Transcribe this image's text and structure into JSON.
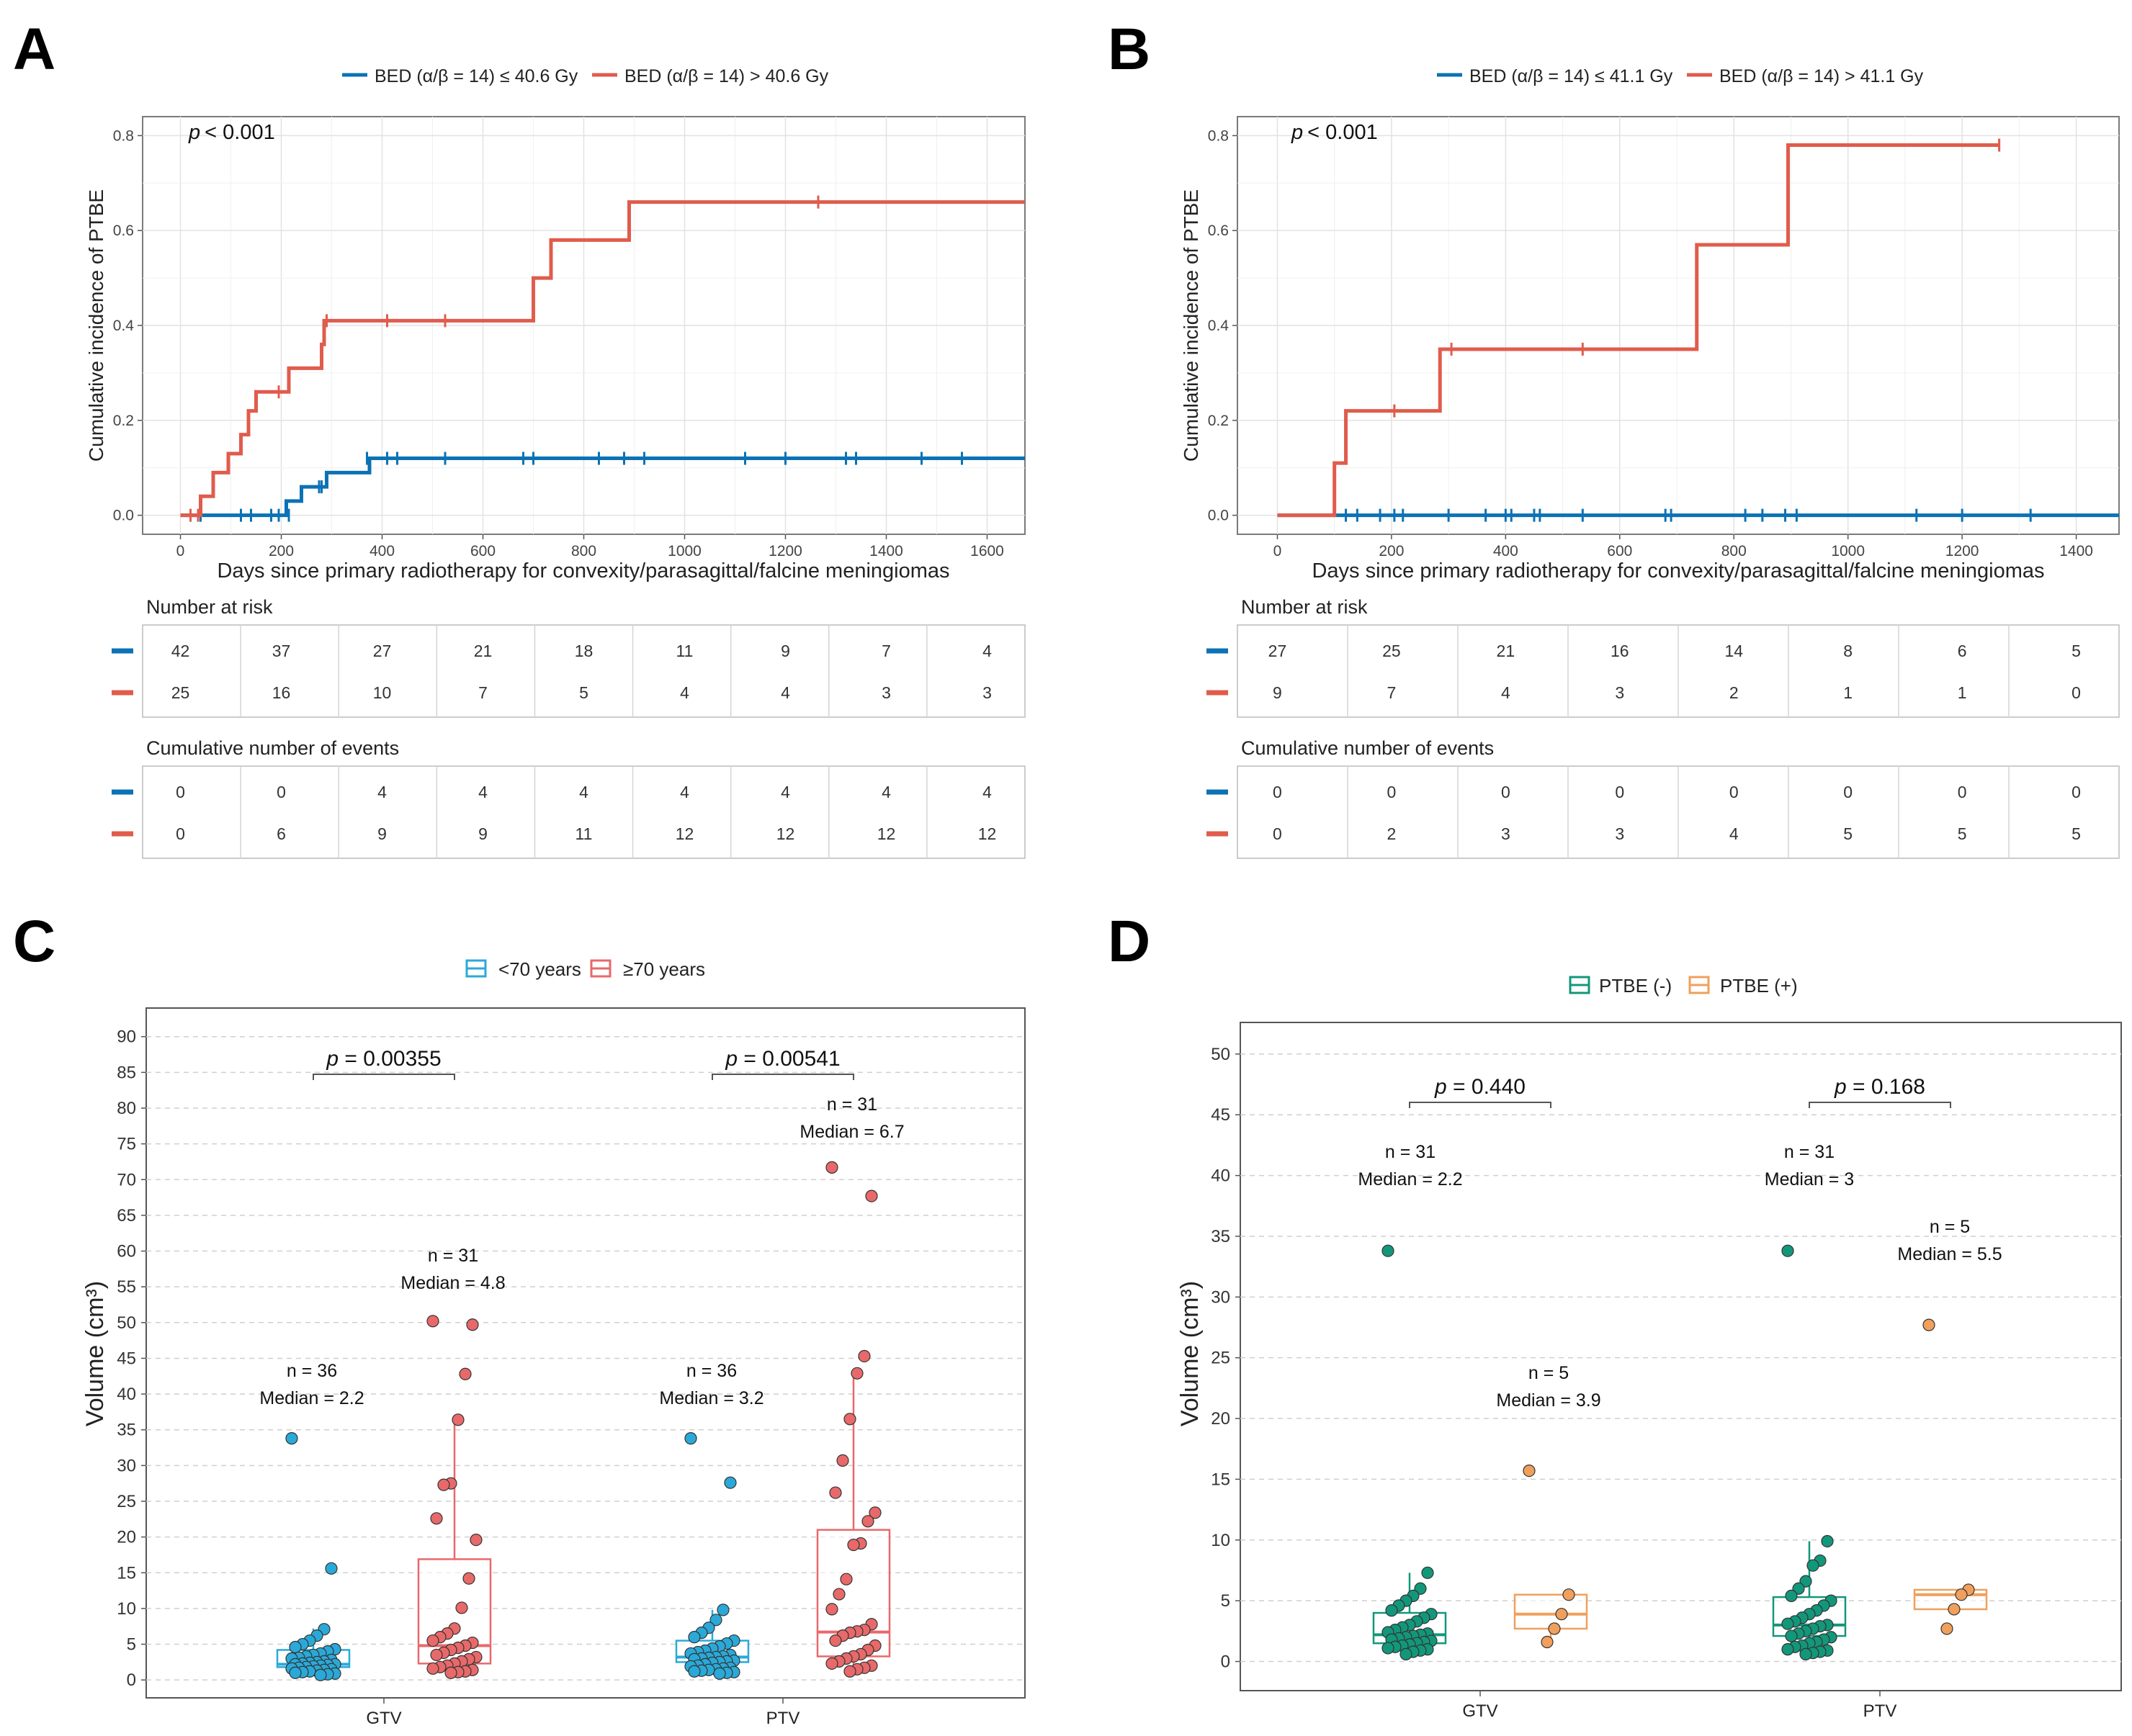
{
  "chart_data": [
    {
      "panel": "A",
      "type": "line",
      "legend": [
        "BED (α/β = 14) ≤ 40.6 Gy",
        "BED (α/β = 14) > 40.6 Gy"
      ],
      "p_label": "p",
      "p_value": "< 0.001",
      "xlabel": "Days since primary radiotherapy for convexity/parasagittal/falcine meningiomas",
      "ylabel": "Cumulative incidence of PTBE",
      "xlim": [
        -75,
        1675
      ],
      "ylim": [
        -0.04,
        0.84
      ],
      "x_ticks": [
        0,
        200,
        400,
        600,
        800,
        1000,
        1200,
        1400,
        1600
      ],
      "x_tick_labels": [
        "0",
        "200",
        "400",
        "600",
        "800",
        "1000",
        "1200",
        "1400",
        "1600"
      ],
      "y_ticks": [
        0,
        0.2,
        0.4,
        0.6,
        0.8
      ],
      "y_tick_labels": [
        "0.0",
        "0.2",
        "0.4",
        "0.6",
        "0.8"
      ],
      "series": [
        {
          "name": "BED (α/β = 14) ≤ 40.6 Gy",
          "color": "#0b72b5",
          "steps": [
            [
              0,
              0
            ],
            [
              210,
              0
            ],
            [
              210,
              0.03
            ],
            [
              240,
              0.03
            ],
            [
              240,
              0.06
            ],
            [
              290,
              0.06
            ],
            [
              290,
              0.09
            ],
            [
              375,
              0.09
            ],
            [
              375,
              0.12
            ],
            [
              1675,
              0.12
            ]
          ],
          "censor_x": [
            40,
            120,
            140,
            180,
            195,
            215,
            275,
            280,
            370,
            410,
            430,
            525,
            680,
            700,
            830,
            880,
            920,
            1120,
            1200,
            1320,
            1340,
            1470,
            1550
          ],
          "censor_y": [
            0,
            0,
            0,
            0,
            0,
            0,
            0.06,
            0.06,
            0.12,
            0.12,
            0.12,
            0.12,
            0.12,
            0.12,
            0.12,
            0.12,
            0.12,
            0.12,
            0.12,
            0.12,
            0.12,
            0.12,
            0.12
          ]
        },
        {
          "name": "BED (α/β = 14) > 40.6 Gy",
          "color": "#e05c4c",
          "steps": [
            [
              0,
              0
            ],
            [
              40,
              0
            ],
            [
              40,
              0.04
            ],
            [
              65,
              0.04
            ],
            [
              65,
              0.09
            ],
            [
              95,
              0.09
            ],
            [
              95,
              0.13
            ],
            [
              120,
              0.13
            ],
            [
              120,
              0.17
            ],
            [
              135,
              0.17
            ],
            [
              135,
              0.22
            ],
            [
              150,
              0.22
            ],
            [
              150,
              0.26
            ],
            [
              215,
              0.26
            ],
            [
              215,
              0.31
            ],
            [
              280,
              0.31
            ],
            [
              280,
              0.36
            ],
            [
              285,
              0.36
            ],
            [
              285,
              0.41
            ],
            [
              700,
              0.41
            ],
            [
              700,
              0.5
            ],
            [
              735,
              0.5
            ],
            [
              735,
              0.58
            ],
            [
              890,
              0.58
            ],
            [
              890,
              0.66
            ],
            [
              1675,
              0.66
            ]
          ],
          "censor_x": [
            20,
            35,
            195,
            290,
            410,
            525,
            1265
          ],
          "censor_y": [
            0,
            0,
            0.26,
            0.41,
            0.41,
            0.41,
            0.66
          ]
        }
      ],
      "risk_title": "Number at risk",
      "risk_table": [
        [
          "42",
          "37",
          "27",
          "21",
          "18",
          "11",
          "9",
          "7",
          "4"
        ],
        [
          "25",
          "16",
          "10",
          "7",
          "5",
          "4",
          "4",
          "3",
          "3"
        ]
      ],
      "events_title": "Cumulative number of events",
      "events_table": [
        [
          "0",
          "0",
          "4",
          "4",
          "4",
          "4",
          "4",
          "4",
          "4"
        ],
        [
          "0",
          "6",
          "9",
          "9",
          "11",
          "12",
          "12",
          "12",
          "12"
        ]
      ]
    },
    {
      "panel": "B",
      "type": "line",
      "legend": [
        "BED (α/β = 14) ≤ 41.1 Gy",
        "BED (α/β = 14) > 41.1 Gy"
      ],
      "p_label": "p",
      "p_value": "< 0.001",
      "xlabel": "Days since primary radiotherapy for convexity/parasagittal/falcine meningiomas",
      "ylabel": "Cumulative incidence of PTBE",
      "xlim": [
        -70,
        1475
      ],
      "ylim": [
        -0.04,
        0.84
      ],
      "x_ticks": [
        0,
        200,
        400,
        600,
        800,
        1000,
        1200,
        1400
      ],
      "x_tick_labels": [
        "0",
        "200",
        "400",
        "600",
        "800",
        "1000",
        "1200",
        "1400"
      ],
      "y_ticks": [
        0,
        0.2,
        0.4,
        0.6,
        0.8
      ],
      "y_tick_labels": [
        "0.0",
        "0.2",
        "0.4",
        "0.6",
        "0.8"
      ],
      "series": [
        {
          "name": "BED (α/β = 14) ≤ 41.1 Gy",
          "color": "#0b72b5",
          "steps": [
            [
              0,
              0
            ],
            [
              1475,
              0
            ]
          ],
          "censor_x": [
            120,
            140,
            180,
            205,
            220,
            300,
            365,
            400,
            410,
            450,
            460,
            535,
            680,
            690,
            820,
            850,
            890,
            910,
            1120,
            1200,
            1320
          ],
          "censor_y": [
            0,
            0,
            0,
            0,
            0,
            0,
            0,
            0,
            0,
            0,
            0,
            0,
            0,
            0,
            0,
            0,
            0,
            0,
            0,
            0,
            0
          ]
        },
        {
          "name": "BED (α/β = 14) > 41.1 Gy",
          "color": "#e05c4c",
          "steps": [
            [
              0,
              0
            ],
            [
              100,
              0
            ],
            [
              100,
              0.11
            ],
            [
              120,
              0.11
            ],
            [
              120,
              0.22
            ],
            [
              285,
              0.22
            ],
            [
              285,
              0.35
            ],
            [
              735,
              0.35
            ],
            [
              735,
              0.57
            ],
            [
              895,
              0.57
            ],
            [
              895,
              0.78
            ],
            [
              1265,
              0.78
            ]
          ],
          "censor_x": [
            205,
            305,
            535,
            1265
          ],
          "censor_y": [
            0.22,
            0.35,
            0.35,
            0.78
          ]
        }
      ],
      "risk_title": "Number at risk",
      "risk_table": [
        [
          "27",
          "25",
          "21",
          "16",
          "14",
          "8",
          "6",
          "5"
        ],
        [
          "9",
          "7",
          "4",
          "3",
          "2",
          "1",
          "1",
          "0"
        ]
      ],
      "events_title": "Cumulative number of events",
      "events_table": [
        [
          "0",
          "0",
          "0",
          "0",
          "0",
          "0",
          "0",
          "0"
        ],
        [
          "0",
          "2",
          "3",
          "3",
          "4",
          "5",
          "5",
          "5"
        ]
      ]
    },
    {
      "panel": "C",
      "type": "box",
      "legend": [
        "<70 years",
        "≥70 years"
      ],
      "colors": [
        "#2aa9d8",
        "#e8696a"
      ],
      "categories": [
        "GTV",
        "PTV"
      ],
      "ylabel": "Volume (cm³)",
      "ylim": [
        -2.5,
        94
      ],
      "y_ticks": [
        0,
        5,
        10,
        15,
        20,
        25,
        30,
        35,
        40,
        45,
        50,
        55,
        60,
        65,
        70,
        75,
        80,
        85,
        90
      ],
      "y_tick_labels": [
        "0",
        "5",
        "10",
        "15",
        "20",
        "25",
        "30",
        "35",
        "40",
        "45",
        "50",
        "55",
        "60",
        "65",
        "70",
        "75",
        "80",
        "85",
        "90"
      ],
      "comparisons": [
        {
          "label": "p",
          "value": " = 0.00355"
        },
        {
          "label": "p",
          "value": " = 0.00541"
        }
      ],
      "groups": [
        {
          "category": "GTV",
          "series": "<70 years",
          "n_text": "n = 36",
          "median_text": "Median = 2.2",
          "stats": {
            "q1": 1.8,
            "median": 2.2,
            "q3": 4.2,
            "whisker_low": 0.8,
            "whisker_high": 7.2
          },
          "points": [
            33.8,
            15.6,
            7.1,
            6.2,
            5.5,
            5.0,
            4.6,
            4.3,
            4.0,
            3.7,
            3.5,
            3.3,
            3.1,
            3.0,
            2.8,
            2.6,
            2.5,
            2.4,
            2.3,
            2.2,
            2.2,
            2.1,
            2.0,
            1.9,
            1.8,
            1.7,
            1.6,
            1.5,
            1.4,
            1.3,
            1.2,
            1.1,
            1.0,
            0.9,
            0.8,
            0.7
          ]
        },
        {
          "category": "GTV",
          "series": "≥70 years",
          "n_text": "n = 31",
          "median_text": "Median = 4.8",
          "stats": {
            "q1": 2.3,
            "median": 4.8,
            "q3": 16.9,
            "whisker_low": 1.0,
            "whisker_high": 36.4
          },
          "points": [
            50.2,
            49.7,
            42.8,
            36.4,
            27.5,
            27.3,
            22.6,
            19.6,
            14.2,
            10.1,
            7.2,
            6.5,
            6.0,
            5.5,
            5.2,
            4.8,
            4.5,
            4.2,
            3.8,
            3.5,
            3.2,
            2.9,
            2.6,
            2.3,
            2.0,
            1.8,
            1.6,
            1.4,
            1.2,
            1.1,
            1.0
          ]
        },
        {
          "category": "PTV",
          "series": "<70 years",
          "n_text": "n = 36",
          "median_text": "Median = 3.2",
          "stats": {
            "q1": 2.5,
            "median": 3.2,
            "q3": 5.5,
            "whisker_low": 0.9,
            "whisker_high": 9.8
          },
          "points": [
            33.8,
            27.6,
            9.8,
            8.4,
            7.3,
            6.6,
            6.0,
            5.5,
            5.1,
            4.7,
            4.4,
            4.1,
            3.9,
            3.7,
            3.5,
            3.3,
            3.2,
            3.1,
            3.0,
            2.9,
            2.7,
            2.6,
            2.5,
            2.4,
            2.2,
            2.0,
            1.9,
            1.7,
            1.6,
            1.5,
            1.4,
            1.3,
            1.2,
            1.1,
            1.0,
            0.9
          ]
        },
        {
          "category": "PTV",
          "series": "≥70 years",
          "n_text": "n = 31",
          "median_text": "Median = 6.7",
          "stats": {
            "q1": 3.3,
            "median": 6.7,
            "q3": 21.0,
            "whisker_low": 1.2,
            "whisker_high": 43.0
          },
          "points": [
            71.7,
            67.7,
            45.3,
            42.9,
            36.5,
            30.7,
            26.2,
            23.4,
            22.2,
            19.1,
            18.9,
            14.1,
            12.0,
            9.9,
            7.8,
            7.0,
            6.8,
            6.6,
            6.2,
            5.5,
            4.8,
            4.2,
            3.6,
            3.3,
            3.0,
            2.6,
            2.3,
            2.0,
            1.7,
            1.5,
            1.2
          ]
        }
      ]
    },
    {
      "panel": "D",
      "type": "box",
      "legend": [
        "PTBE (-)",
        "PTBE (+)"
      ],
      "colors": [
        "#12977a",
        "#f0a05c"
      ],
      "categories": [
        "GTV",
        "PTV"
      ],
      "ylabel": "Volume (cm³)",
      "ylim": [
        -2.4,
        52.6
      ],
      "y_ticks": [
        0,
        5,
        10,
        15,
        20,
        25,
        30,
        35,
        40,
        45,
        50
      ],
      "y_tick_labels": [
        "0",
        "5",
        "10",
        "15",
        "20",
        "25",
        "30",
        "35",
        "40",
        "45",
        "50"
      ],
      "comparisons": [
        {
          "label": "p",
          "value": " = 0.440"
        },
        {
          "label": "p",
          "value": " = 0.168"
        }
      ],
      "groups": [
        {
          "category": "GTV",
          "series": "PTBE (-)",
          "n_text": "n = 31",
          "median_text": "Median = 2.2",
          "stats": {
            "q1": 1.5,
            "median": 2.2,
            "q3": 4.0,
            "whisker_low": 0.6,
            "whisker_high": 7.3
          },
          "points": [
            33.8,
            7.3,
            6.0,
            5.4,
            5.0,
            4.6,
            4.2,
            3.9,
            3.6,
            3.3,
            3.0,
            2.8,
            2.6,
            2.4,
            2.3,
            2.2,
            2.1,
            2.0,
            1.9,
            1.8,
            1.7,
            1.6,
            1.5,
            1.4,
            1.3,
            1.2,
            1.1,
            1.0,
            0.9,
            0.8,
            0.6
          ]
        },
        {
          "category": "GTV",
          "series": "PTBE (+)",
          "n_text": "n = 5",
          "median_text": "Median = 3.9",
          "stats": {
            "q1": 2.7,
            "median": 3.9,
            "q3": 5.5,
            "whisker_low": 1.6,
            "whisker_high": 5.5
          },
          "points": [
            15.7,
            5.5,
            3.9,
            2.7,
            1.6
          ]
        },
        {
          "category": "PTV",
          "series": "PTBE (-)",
          "n_text": "n = 31",
          "median_text": "Median = 3",
          "stats": {
            "q1": 2.1,
            "median": 3.0,
            "q3": 5.3,
            "whisker_low": 0.6,
            "whisker_high": 9.9
          },
          "points": [
            33.8,
            9.9,
            8.3,
            7.9,
            6.6,
            6.0,
            5.4,
            5.0,
            4.6,
            4.2,
            3.9,
            3.6,
            3.3,
            3.1,
            3.0,
            2.9,
            2.7,
            2.5,
            2.3,
            2.1,
            2.0,
            1.8,
            1.6,
            1.5,
            1.3,
            1.2,
            1.0,
            0.9,
            0.8,
            0.7,
            0.6
          ]
        },
        {
          "category": "PTV",
          "series": "PTBE (+)",
          "n_text": "n = 5",
          "median_text": "Median = 5.5",
          "stats": {
            "q1": 4.3,
            "median": 5.5,
            "q3": 5.9,
            "whisker_low": 4.3,
            "whisker_high": 5.9
          },
          "points": [
            27.7,
            5.9,
            5.5,
            4.3,
            2.7
          ]
        }
      ]
    }
  ]
}
